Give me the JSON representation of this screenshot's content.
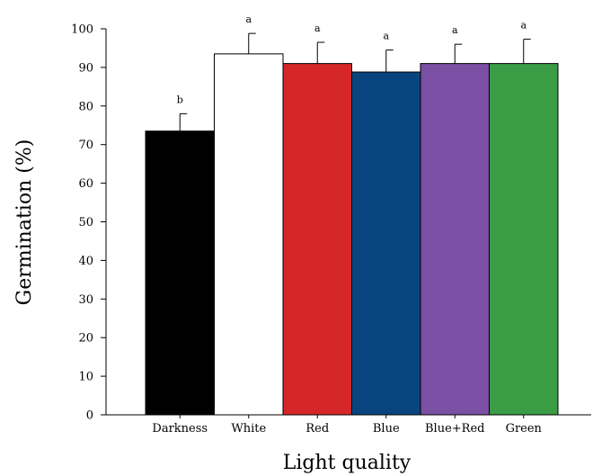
{
  "chart_data": {
    "type": "bar",
    "title": "",
    "xlabel": "Light quality",
    "ylabel": "Germination (%)",
    "ylim": [
      0,
      100
    ],
    "yticks": [
      0,
      10,
      20,
      30,
      40,
      50,
      60,
      70,
      80,
      90,
      100
    ],
    "grid": false,
    "categories": [
      "Darkness",
      "White",
      "Red",
      "Blue",
      "Blue+Red",
      "Green"
    ],
    "values": [
      73.5,
      93.5,
      91.0,
      88.8,
      91.0,
      91.0
    ],
    "errors": [
      4.5,
      5.3,
      5.5,
      5.7,
      5.0,
      6.3
    ],
    "significance": [
      "b",
      "a",
      "a",
      "a",
      "a",
      "a"
    ],
    "colors": [
      "#000000",
      "#ffffff",
      "#d62728",
      "#08457e",
      "#7b4fa3",
      "#3a9c45"
    ]
  }
}
